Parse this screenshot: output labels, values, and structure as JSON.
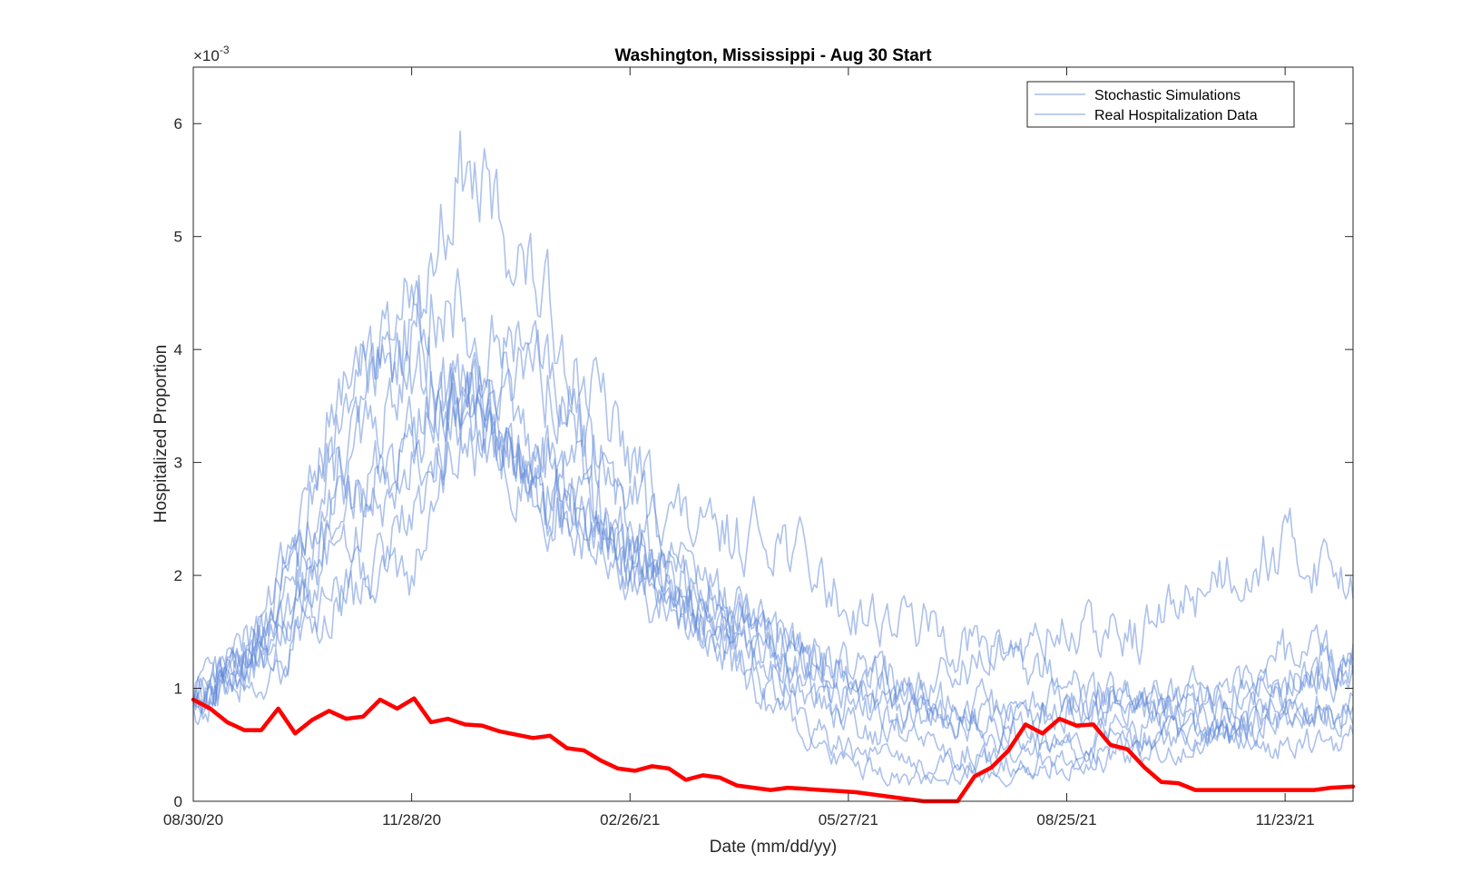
{
  "chart_data": {
    "type": "line",
    "title": "Washington, Mississippi - Aug 30 Start",
    "xlabel": "Date (mm/dd/yy)",
    "ylabel": "Hospitalized Proportion",
    "y_exponent_label": "×10",
    "y_exponent_power": "-3",
    "x_tick_labels": [
      "08/30/20",
      "11/28/20",
      "02/26/21",
      "05/27/21",
      "08/25/21",
      "11/23/21"
    ],
    "x_tick_days": [
      0,
      90,
      180,
      270,
      360,
      450
    ],
    "xlim": [
      0,
      478
    ],
    "y_tick_labels": [
      "0",
      "1",
      "2",
      "3",
      "4",
      "5",
      "6"
    ],
    "y_tick_values": [
      0,
      1,
      2,
      3,
      4,
      5,
      6
    ],
    "ylim": [
      0,
      6.5
    ],
    "y_units_scale": 0.001,
    "legend_position": "top-right",
    "grid": false,
    "colors": {
      "simulation": "#5b86d8",
      "real": "#ff0000"
    },
    "series": [
      {
        "name": "Stochastic Simulations",
        "kind": "simulation",
        "days": [
          0,
          30,
          60,
          90,
          110,
          125,
          150,
          180,
          210,
          240,
          270,
          300,
          330,
          360,
          390,
          420,
          450,
          478
        ],
        "values": [
          0.88,
          1.5,
          3.0,
          4.2,
          5.6,
          5.2,
          4.2,
          3.0,
          2.3,
          2.4,
          1.7,
          1.55,
          1.3,
          1.5,
          1.45,
          2.0,
          2.25,
          2.0
        ]
      },
      {
        "name": "",
        "kind": "simulation",
        "days": [
          0,
          30,
          60,
          90,
          110,
          130,
          160,
          180,
          210,
          240,
          270,
          300,
          330,
          360,
          390,
          420,
          450,
          478
        ],
        "values": [
          0.9,
          1.6,
          3.4,
          4.6,
          4.3,
          4.0,
          3.3,
          2.5,
          1.9,
          1.4,
          1.1,
          0.9,
          0.85,
          0.9,
          0.85,
          1.0,
          1.1,
          1.3
        ]
      },
      {
        "name": "",
        "kind": "simulation",
        "days": [
          0,
          30,
          60,
          90,
          110,
          130,
          160,
          180,
          210,
          240,
          270,
          300,
          330,
          360,
          390,
          420,
          450,
          478
        ],
        "values": [
          0.85,
          1.3,
          2.6,
          3.2,
          3.7,
          3.3,
          2.6,
          2.1,
          1.6,
          1.3,
          1.0,
          0.8,
          0.7,
          0.8,
          0.9,
          0.75,
          0.85,
          0.8
        ]
      },
      {
        "name": "",
        "kind": "simulation",
        "days": [
          0,
          30,
          60,
          90,
          110,
          130,
          160,
          180,
          210,
          240,
          270,
          300,
          330,
          360,
          390,
          420,
          450,
          478
        ],
        "values": [
          0.9,
          1.2,
          1.8,
          2.5,
          3.4,
          4.0,
          3.4,
          2.8,
          1.9,
          1.4,
          1.2,
          1.0,
          1.3,
          1.1,
          0.8,
          1.0,
          1.3,
          1.2
        ]
      },
      {
        "name": "",
        "kind": "simulation",
        "days": [
          0,
          30,
          60,
          90,
          110,
          130,
          160,
          180,
          210,
          240,
          270,
          300,
          330,
          360,
          390,
          420,
          450,
          478
        ],
        "values": [
          0.87,
          1.4,
          2.9,
          3.8,
          3.5,
          3.2,
          2.9,
          2.3,
          1.8,
          1.5,
          1.2,
          0.9,
          0.6,
          0.5,
          0.65,
          0.6,
          0.7,
          0.75
        ]
      },
      {
        "name": "",
        "kind": "simulation",
        "days": [
          0,
          30,
          60,
          90,
          110,
          130,
          160,
          180,
          210,
          240,
          270,
          300,
          330,
          360,
          390,
          420,
          450,
          478
        ],
        "values": [
          0.9,
          1.5,
          2.2,
          3.0,
          3.3,
          2.8,
          2.5,
          2.0,
          1.5,
          0.8,
          0.45,
          0.3,
          0.35,
          0.3,
          0.4,
          0.5,
          0.9,
          1.25
        ]
      },
      {
        "name": "",
        "kind": "simulation",
        "days": [
          0,
          30,
          60,
          90,
          110,
          130,
          160,
          180,
          210,
          240,
          270,
          300,
          330,
          360,
          390,
          420,
          450,
          478
        ],
        "values": [
          0.88,
          1.1,
          1.8,
          2.0,
          3.5,
          3.0,
          2.5,
          2.1,
          1.8,
          1.2,
          0.7,
          0.5,
          0.4,
          0.5,
          0.5,
          0.8,
          1.0,
          1.1
        ]
      },
      {
        "name": "",
        "kind": "simulation",
        "days": [
          0,
          30,
          60,
          90,
          110,
          130,
          160,
          180,
          210,
          240,
          270,
          300,
          330,
          360,
          390,
          420,
          450,
          478
        ],
        "values": [
          0.9,
          1.6,
          3.6,
          4.2,
          3.6,
          3.1,
          2.6,
          2.2,
          1.6,
          1.1,
          0.9,
          0.75,
          0.7,
          0.75,
          0.95,
          0.6,
          0.75,
          0.85
        ]
      },
      {
        "name": "",
        "kind": "simulation",
        "days": [
          0,
          30,
          60,
          90,
          110,
          130,
          160,
          180,
          210,
          240,
          270,
          300,
          330,
          360,
          390,
          420,
          450,
          478
        ],
        "values": [
          0.86,
          1.3,
          2.5,
          3.3,
          3.7,
          3.0,
          2.4,
          2.2,
          1.6,
          1.1,
          0.3,
          0.2,
          0.25,
          0.35,
          0.55,
          0.6,
          0.5,
          0.55
        ]
      },
      {
        "name": "Real Hospitalization Data",
        "kind": "real",
        "days": [
          0,
          7,
          14,
          21,
          28,
          35,
          42,
          49,
          56,
          63,
          70,
          77,
          84,
          91,
          98,
          105,
          112,
          119,
          126,
          133,
          140,
          147,
          154,
          161,
          168,
          175,
          182,
          189,
          196,
          203,
          210,
          217,
          224,
          231,
          238,
          245,
          252,
          259,
          266,
          273,
          280,
          287,
          294,
          301,
          308,
          315,
          322,
          329,
          336,
          343,
          350,
          357,
          364,
          371,
          378,
          385,
          392,
          399,
          406,
          413,
          420,
          427,
          434,
          441,
          448,
          455,
          462,
          469,
          478
        ],
        "values": [
          0.9,
          0.82,
          0.7,
          0.63,
          0.63,
          0.82,
          0.6,
          0.72,
          0.8,
          0.73,
          0.75,
          0.9,
          0.82,
          0.91,
          0.7,
          0.73,
          0.68,
          0.67,
          0.62,
          0.59,
          0.56,
          0.58,
          0.47,
          0.45,
          0.36,
          0.29,
          0.27,
          0.31,
          0.29,
          0.19,
          0.23,
          0.21,
          0.14,
          0.12,
          0.1,
          0.12,
          0.11,
          0.1,
          0.09,
          0.08,
          0.06,
          0.04,
          0.02,
          0.0,
          0.0,
          0.0,
          0.22,
          0.3,
          0.45,
          0.68,
          0.6,
          0.73,
          0.67,
          0.68,
          0.5,
          0.46,
          0.3,
          0.17,
          0.16,
          0.1,
          0.1,
          0.1,
          0.1,
          0.1,
          0.1,
          0.1,
          0.1,
          0.12,
          0.13
        ]
      }
    ]
  }
}
